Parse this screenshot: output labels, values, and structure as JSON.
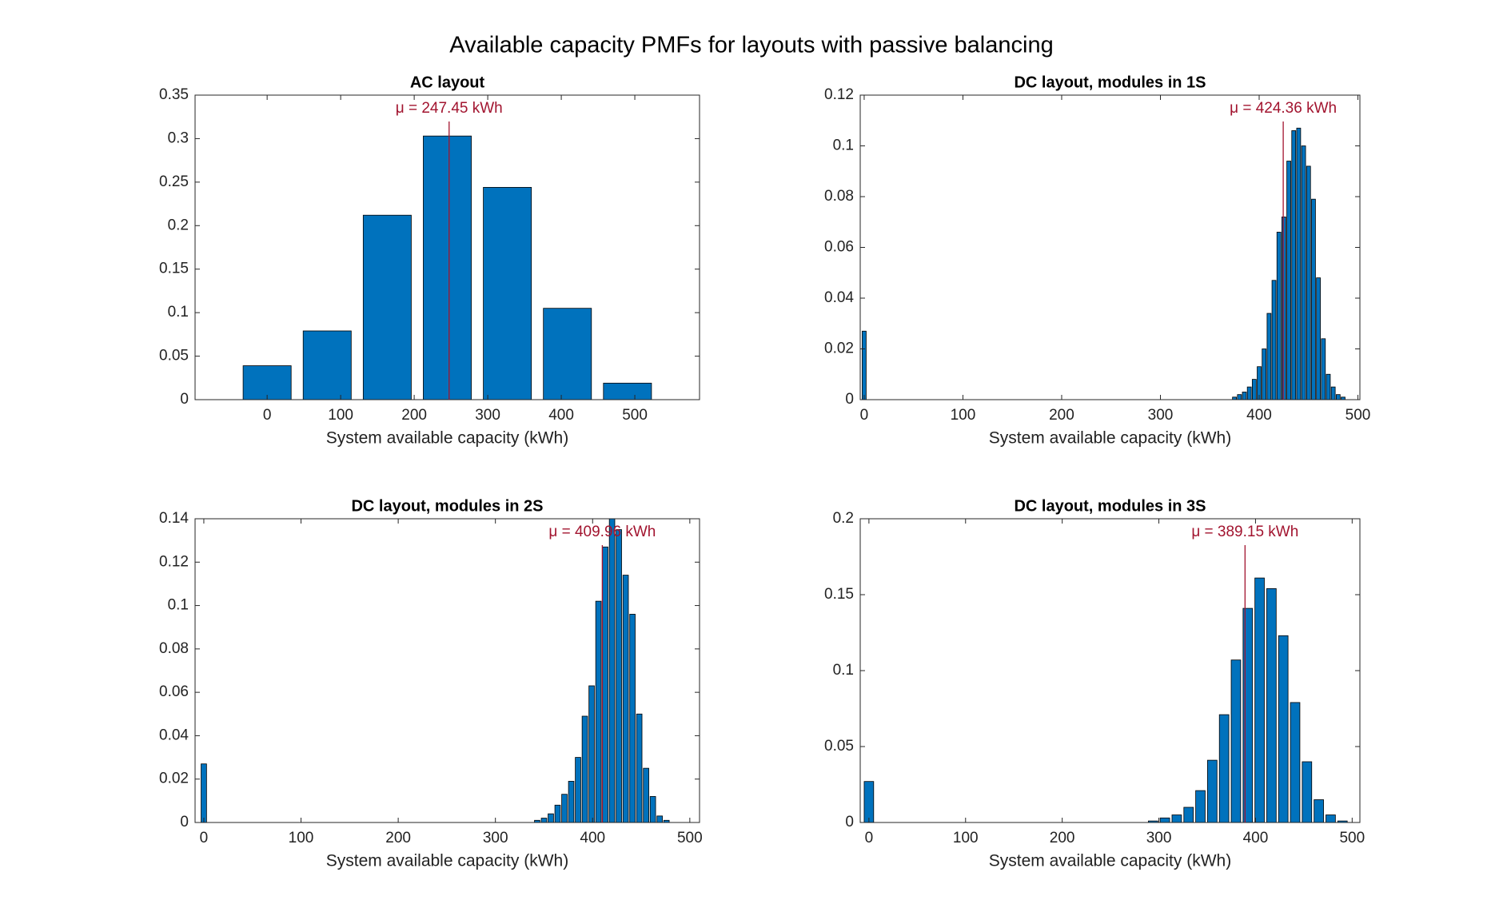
{
  "title": "Available capacity PMFs for layouts with passive balancing",
  "chart_data": [
    {
      "type": "bar",
      "title": "AC layout",
      "xlabel": "System available capacity (kWh)",
      "color": "#0072BD",
      "x": [
        0,
        81.67,
        163.33,
        245,
        326.67,
        408.33,
        490
      ],
      "values": [
        0.039,
        0.079,
        0.212,
        0.303,
        0.244,
        0.105,
        0.019
      ],
      "mean": 247.45,
      "mean_label": "μ = 247.45 kWh",
      "xlim": [
        -98,
        588
      ],
      "xticks": [
        0,
        100,
        200,
        300,
        400,
        500
      ],
      "ylim": [
        0,
        0.35
      ],
      "yticks": [
        0,
        0.05,
        0.1,
        0.15,
        0.2,
        0.25,
        0.3,
        0.35
      ]
    },
    {
      "type": "bar",
      "title": "DC layout, modules in 1S",
      "xlabel": "System available capacity (kWh)",
      "color": "#0072BD",
      "x": [
        0,
        5,
        10,
        15,
        20,
        25,
        30,
        35,
        40,
        45,
        50,
        55,
        60,
        65,
        70,
        75,
        80,
        85,
        90,
        95,
        100,
        105,
        110,
        115,
        120,
        125,
        130,
        135,
        140,
        145,
        150,
        155,
        160,
        165,
        170,
        175,
        180,
        185,
        190,
        195,
        200,
        205,
        210,
        215,
        220,
        225,
        230,
        235,
        240,
        245,
        250,
        255,
        260,
        265,
        270,
        275,
        280,
        285,
        290,
        295,
        300,
        305,
        310,
        315,
        320,
        325,
        330,
        335,
        340,
        345,
        350,
        355,
        360,
        365,
        370,
        375,
        380,
        385,
        390,
        395,
        400,
        405,
        410,
        415,
        420,
        425,
        430,
        435,
        440,
        445,
        450,
        455,
        460,
        465,
        470,
        475,
        480,
        485,
        490
      ],
      "values": [
        0.027,
        0,
        0,
        0,
        0,
        0,
        0,
        0,
        0,
        0,
        0,
        0,
        0,
        0,
        0,
        0,
        0,
        0,
        0,
        0,
        0,
        0,
        0,
        0,
        0,
        0,
        0,
        0,
        0,
        0,
        0,
        0,
        0,
        0,
        0,
        0,
        0,
        0,
        0,
        0,
        0,
        0,
        0,
        0,
        0,
        0,
        0,
        0,
        0,
        0,
        0,
        0,
        0,
        0,
        0,
        0,
        0,
        0,
        0,
        0,
        0,
        0,
        0,
        0,
        0,
        0,
        0,
        0,
        0,
        0,
        0,
        0,
        0,
        0,
        0,
        0.001,
        0.002,
        0.003,
        0.005,
        0.008,
        0.013,
        0.02,
        0.034,
        0.047,
        0.066,
        0.072,
        0.094,
        0.106,
        0.107,
        0.1,
        0.092,
        0.079,
        0.048,
        0.024,
        0.01,
        0.005,
        0.002,
        0.001,
        0
      ],
      "mean": 424.36,
      "mean_label": "μ = 424.36 kWh",
      "xlim": [
        -4,
        502
      ],
      "xticks": [
        0,
        100,
        200,
        300,
        400,
        500
      ],
      "ylim": [
        0,
        0.12
      ],
      "yticks": [
        0,
        0.02,
        0.04,
        0.06,
        0.08,
        0.1,
        0.12
      ]
    },
    {
      "type": "bar",
      "title": "DC layout, modules in 2S",
      "xlabel": "System available capacity (kWh)",
      "color": "#0072BD",
      "x": [
        0,
        7,
        14,
        21,
        28,
        35,
        42,
        49,
        56,
        63,
        70,
        77,
        84,
        91,
        98,
        105,
        112,
        119,
        126,
        133,
        140,
        147,
        154,
        161,
        168,
        175,
        182,
        189,
        196,
        203,
        210,
        217,
        224,
        231,
        238,
        245,
        252,
        259,
        266,
        273,
        280,
        287,
        294,
        301,
        308,
        315,
        322,
        329,
        336,
        343,
        350,
        357,
        364,
        371,
        378,
        385,
        392,
        399,
        406,
        413,
        420,
        427,
        434,
        441,
        448,
        455,
        462,
        469,
        476,
        483,
        490
      ],
      "values": [
        0.027,
        0,
        0,
        0,
        0,
        0,
        0,
        0,
        0,
        0,
        0,
        0,
        0,
        0,
        0,
        0,
        0,
        0,
        0,
        0,
        0,
        0,
        0,
        0,
        0,
        0,
        0,
        0,
        0,
        0,
        0,
        0,
        0,
        0,
        0,
        0,
        0,
        0,
        0,
        0,
        0,
        0,
        0,
        0,
        0,
        0,
        0,
        0,
        0,
        0.001,
        0.002,
        0.004,
        0.008,
        0.013,
        0.019,
        0.03,
        0.049,
        0.063,
        0.102,
        0.127,
        0.14,
        0.135,
        0.114,
        0.096,
        0.05,
        0.025,
        0.012,
        0.003,
        0.001,
        0,
        0
      ],
      "mean": 409.96,
      "mean_label": "μ = 409.96 kWh",
      "xlim": [
        -9,
        510
      ],
      "xticks": [
        0,
        100,
        200,
        300,
        400,
        500
      ],
      "ylim": [
        0,
        0.14
      ],
      "yticks": [
        0,
        0.02,
        0.04,
        0.06,
        0.08,
        0.1,
        0.12,
        0.14
      ]
    },
    {
      "type": "bar",
      "title": "DC layout, modules in 3S",
      "xlabel": "System available capacity (kWh)",
      "color": "#0072BD",
      "x": [
        0,
        12.25,
        24.5,
        36.75,
        49,
        61.25,
        73.5,
        85.75,
        98,
        110.25,
        122.5,
        134.75,
        147,
        159.25,
        171.5,
        183.75,
        196,
        208.25,
        220.5,
        232.75,
        245,
        257.25,
        269.5,
        281.75,
        294,
        306.25,
        318.5,
        330.75,
        343,
        355.25,
        367.5,
        379.75,
        392,
        404.25,
        416.5,
        428.75,
        441,
        453.25,
        465.5,
        477.75,
        490
      ],
      "values": [
        0.027,
        0,
        0,
        0,
        0,
        0,
        0,
        0,
        0,
        0,
        0,
        0,
        0,
        0,
        0,
        0,
        0,
        0,
        0,
        0,
        0,
        0,
        0,
        0,
        0.001,
        0.003,
        0.005,
        0.01,
        0.021,
        0.041,
        0.071,
        0.107,
        0.141,
        0.161,
        0.154,
        0.123,
        0.079,
        0.04,
        0.015,
        0.005,
        0.001
      ],
      "mean": 389.15,
      "mean_label": "μ = 389.15 kWh",
      "xlim": [
        -9,
        508
      ],
      "xticks": [
        0,
        100,
        200,
        300,
        400,
        500
      ],
      "ylim": [
        0,
        0.2
      ],
      "yticks": [
        0,
        0.05,
        0.1,
        0.15,
        0.2
      ]
    }
  ]
}
